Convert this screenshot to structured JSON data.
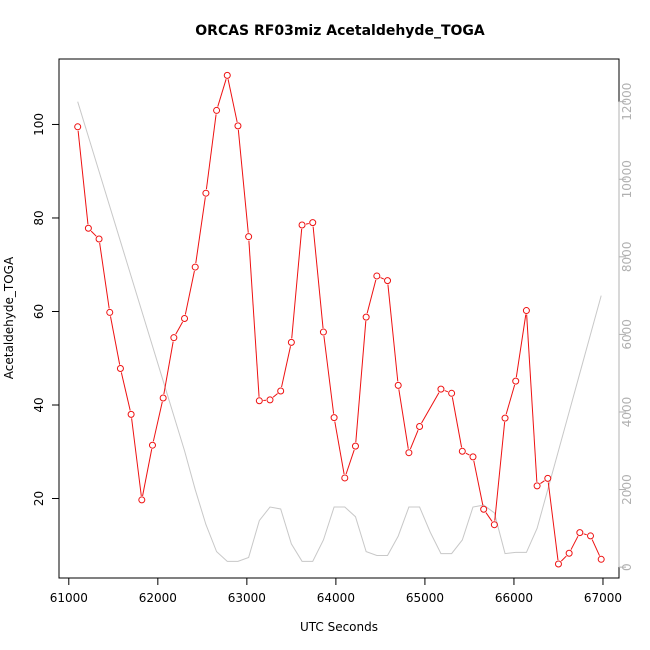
{
  "chart_data": {
    "type": "line",
    "title": "ORCAS RF03miz Acetaldehyde_TOGA",
    "xlabel": "UTC Seconds",
    "ylabel": "Acetaldehyde_TOGA",
    "xlim": [
      60890,
      67180
    ],
    "ylim": [
      3,
      114
    ],
    "y2lim": [
      -280,
      13100
    ],
    "x_ticks": [
      61000,
      62000,
      63000,
      64000,
      65000,
      66000,
      67000
    ],
    "y_ticks": [
      20,
      40,
      60,
      80,
      100
    ],
    "y2_ticks": [
      0,
      2000,
      4000,
      6000,
      8000,
      10000,
      12000
    ],
    "grid": false,
    "series": [
      {
        "color": "#ee1111",
        "marker": "circle-open",
        "x": [
          61100,
          61220,
          61340,
          61460,
          61580,
          61700,
          61820,
          61940,
          62060,
          62180,
          62300,
          62420,
          62540,
          62660,
          62780,
          62900,
          63020,
          63140,
          63260,
          63380,
          63500,
          63620,
          63740,
          63860,
          63980,
          64100,
          64220,
          64340,
          64460,
          64580,
          64700,
          64820,
          64940,
          65180,
          65300,
          65420,
          65540,
          65660,
          65780,
          65900,
          66020,
          66140,
          66260,
          66380,
          66500,
          66620,
          66740,
          66860,
          66980
        ],
        "y": [
          99.5,
          77.8,
          75.5,
          59.8,
          47.8,
          38,
          19.7,
          31.4,
          41.5,
          54.4,
          58.5,
          69.5,
          85.3,
          103,
          110.5,
          99.7,
          76,
          40.9,
          41.1,
          43,
          53.4,
          78.5,
          79,
          55.6,
          37.3,
          24.4,
          31.2,
          58.8,
          67.6,
          66.6,
          44.2,
          29.8,
          35.4,
          43.4,
          42.5,
          30.1,
          28.9,
          17.7,
          14.4,
          37.2,
          45.1,
          60.2,
          22.7,
          24.3,
          6,
          8.3,
          12.7,
          12,
          7
        ]
      },
      {
        "color": "#c8c8c8",
        "axis": "right",
        "x": [
          61100,
          61340,
          61580,
          61820,
          62060,
          62300,
          62420,
          62540,
          62660,
          62780,
          62900,
          63020,
          63140,
          63260,
          63380,
          63500,
          63620,
          63740,
          63860,
          63980,
          64100,
          64220,
          64340,
          64460,
          64580,
          64700,
          64820,
          64940,
          65060,
          65180,
          65300,
          65420,
          65540,
          65660,
          65780,
          65900,
          66020,
          66140,
          66260,
          66380,
          66500,
          66620,
          66740,
          66860,
          66980
        ],
        "y": [
          12000,
          10200,
          8400,
          6600,
          4800,
          3000,
          2000,
          1100,
          400,
          150,
          150,
          250,
          1200,
          1550,
          1500,
          600,
          150,
          150,
          700,
          1550,
          1550,
          1300,
          400,
          300,
          300,
          800,
          1550,
          1550,
          900,
          350,
          350,
          700,
          1550,
          1600,
          1400,
          350,
          380,
          380,
          1000,
          2000,
          3000,
          4000,
          5000,
          6000,
          7000
        ]
      }
    ]
  }
}
